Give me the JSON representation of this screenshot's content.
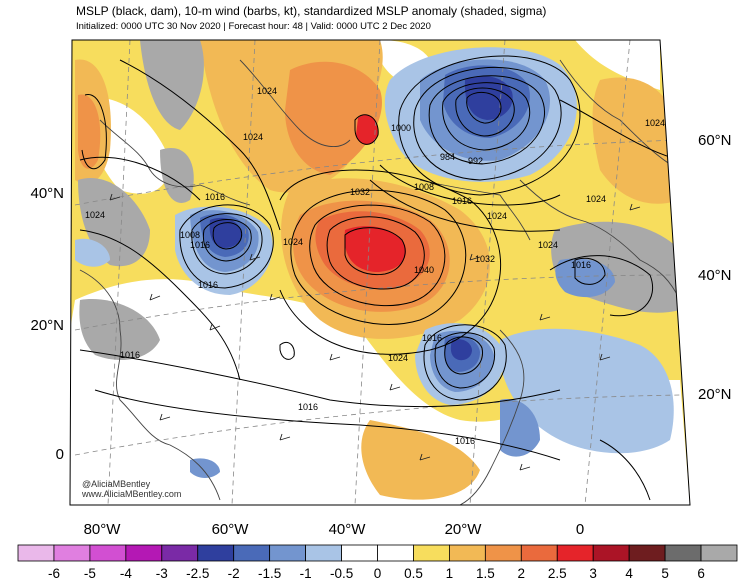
{
  "header": {
    "title": "MSLP (black, dam), 10-m wind (barbs, kt), standardized MSLP anomaly (shaded, sigma)",
    "subtitle": "Initialized: 0000 UTC 30 Nov 2020 | Forecast hour: 48 | Valid: 0000 UTC 2 Dec 2020"
  },
  "axes": {
    "lat_left": [
      "40°N",
      "20°N",
      "0"
    ],
    "lat_right": [
      "60°N",
      "40°N",
      "20°N"
    ],
    "lon_bottom": [
      "80°W",
      "60°W",
      "40°W",
      "20°W",
      "0"
    ]
  },
  "isobar_labels": [
    "1024",
    "1024",
    "1024",
    "1016",
    "1008",
    "1016",
    "1024",
    "1032",
    "1040",
    "1032",
    "1024",
    "1016",
    "1024",
    "992",
    "984",
    "1000",
    "1008",
    "1016",
    "1024",
    "1024",
    "1024",
    "1016",
    "1016",
    "1016",
    "1016",
    "1016"
  ],
  "watermark": [
    "@AliciaMBentley",
    "www.AliciaMBentley.com"
  ],
  "colorbar": {
    "colors": [
      "#eab8ea",
      "#e07fe0",
      "#d24fd2",
      "#b418b4",
      "#7a2aa6",
      "#2f3f9e",
      "#4a6ab8",
      "#7395cf",
      "#a9c4e6",
      "#ffffff",
      "#ffffff",
      "#f7dd5d",
      "#f2b955",
      "#ef9348",
      "#ea6a3d",
      "#e5242a",
      "#ab1426",
      "#6e1d1f",
      "#6c6c6c",
      "#a9a9a9"
    ],
    "labels": [
      "-6",
      "-5",
      "-4",
      "-3",
      "-2.5",
      "-2",
      "-1.5",
      "-1",
      "-0.5",
      "0",
      "0.5",
      "1",
      "1.5",
      "2",
      "2.5",
      "3",
      "4",
      "5",
      "6"
    ]
  }
}
